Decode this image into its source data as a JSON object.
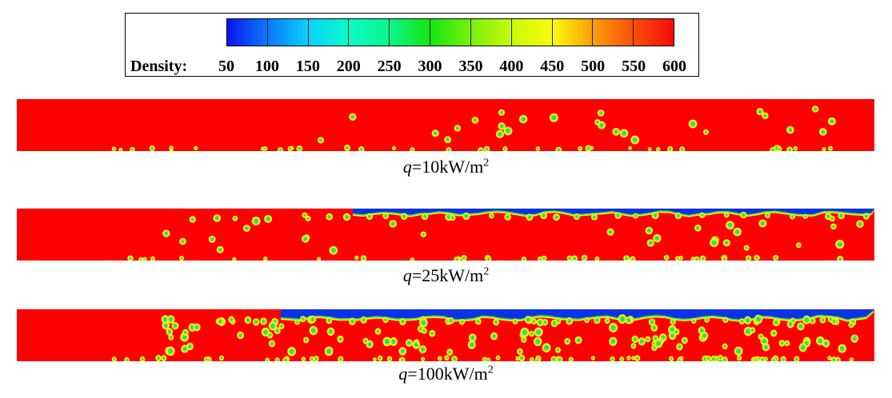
{
  "legend": {
    "title": "Density:",
    "ticks": [
      "50",
      "100",
      "150",
      "200",
      "250",
      "300",
      "350",
      "400",
      "450",
      "500",
      "550",
      "600"
    ],
    "colors": [
      "#0a14f0",
      "#0a78fa",
      "#0ad2fa",
      "#0afac8",
      "#0af58c",
      "#14e614",
      "#78f00a",
      "#c8fa0a",
      "#fafa0a",
      "#faa00a",
      "#fa500a",
      "#f50a0a"
    ]
  },
  "panels": [
    {
      "var": "q",
      "eq": "=10kW/m",
      "exp": "2",
      "film": 0.0
    },
    {
      "var": "q",
      "eq": "=25kW/m",
      "exp": "2",
      "film": 0.55
    },
    {
      "var": "q",
      "eq": "=100kW/m",
      "exp": "2",
      "film": 0.68
    }
  ],
  "colors": {
    "liquid": "#ff0000",
    "vapor": "#0a32e6",
    "interface_outer": "#32e650",
    "interface_mid": "#c8f01e",
    "interface_inner": "#fff000"
  }
}
